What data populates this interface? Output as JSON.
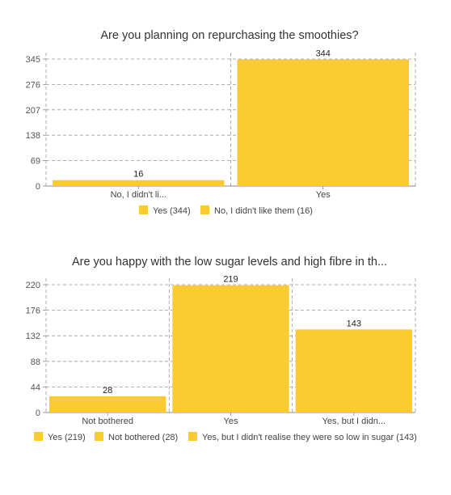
{
  "colors": {
    "bar": "#fcca33",
    "grid": "#999999",
    "axis": "#888888"
  },
  "chart_data": [
    {
      "type": "bar",
      "title": "Are you planning on repurchasing the smoothies?",
      "categories": [
        "No, I didn't li...",
        "Yes"
      ],
      "values": [
        16,
        344
      ],
      "yticks": [
        0,
        69,
        138,
        207,
        276,
        345
      ],
      "ylim": [
        0,
        345
      ],
      "grid": true,
      "legend_position": "bottom",
      "legend": [
        "Yes (344)",
        "No, I didn't like them (16)"
      ]
    },
    {
      "type": "bar",
      "title": "Are you happy with the low sugar levels and high fibre in th...",
      "categories": [
        "Not bothered",
        "Yes",
        "Yes, but I didn..."
      ],
      "values": [
        28,
        219,
        143
      ],
      "yticks": [
        0,
        44,
        88,
        132,
        176,
        220
      ],
      "ylim": [
        0,
        220
      ],
      "grid": true,
      "legend_position": "bottom",
      "legend": [
        "Yes (219)",
        "Not bothered (28)",
        "Yes, but I didn't realise they were so low in sugar (143)"
      ]
    }
  ]
}
